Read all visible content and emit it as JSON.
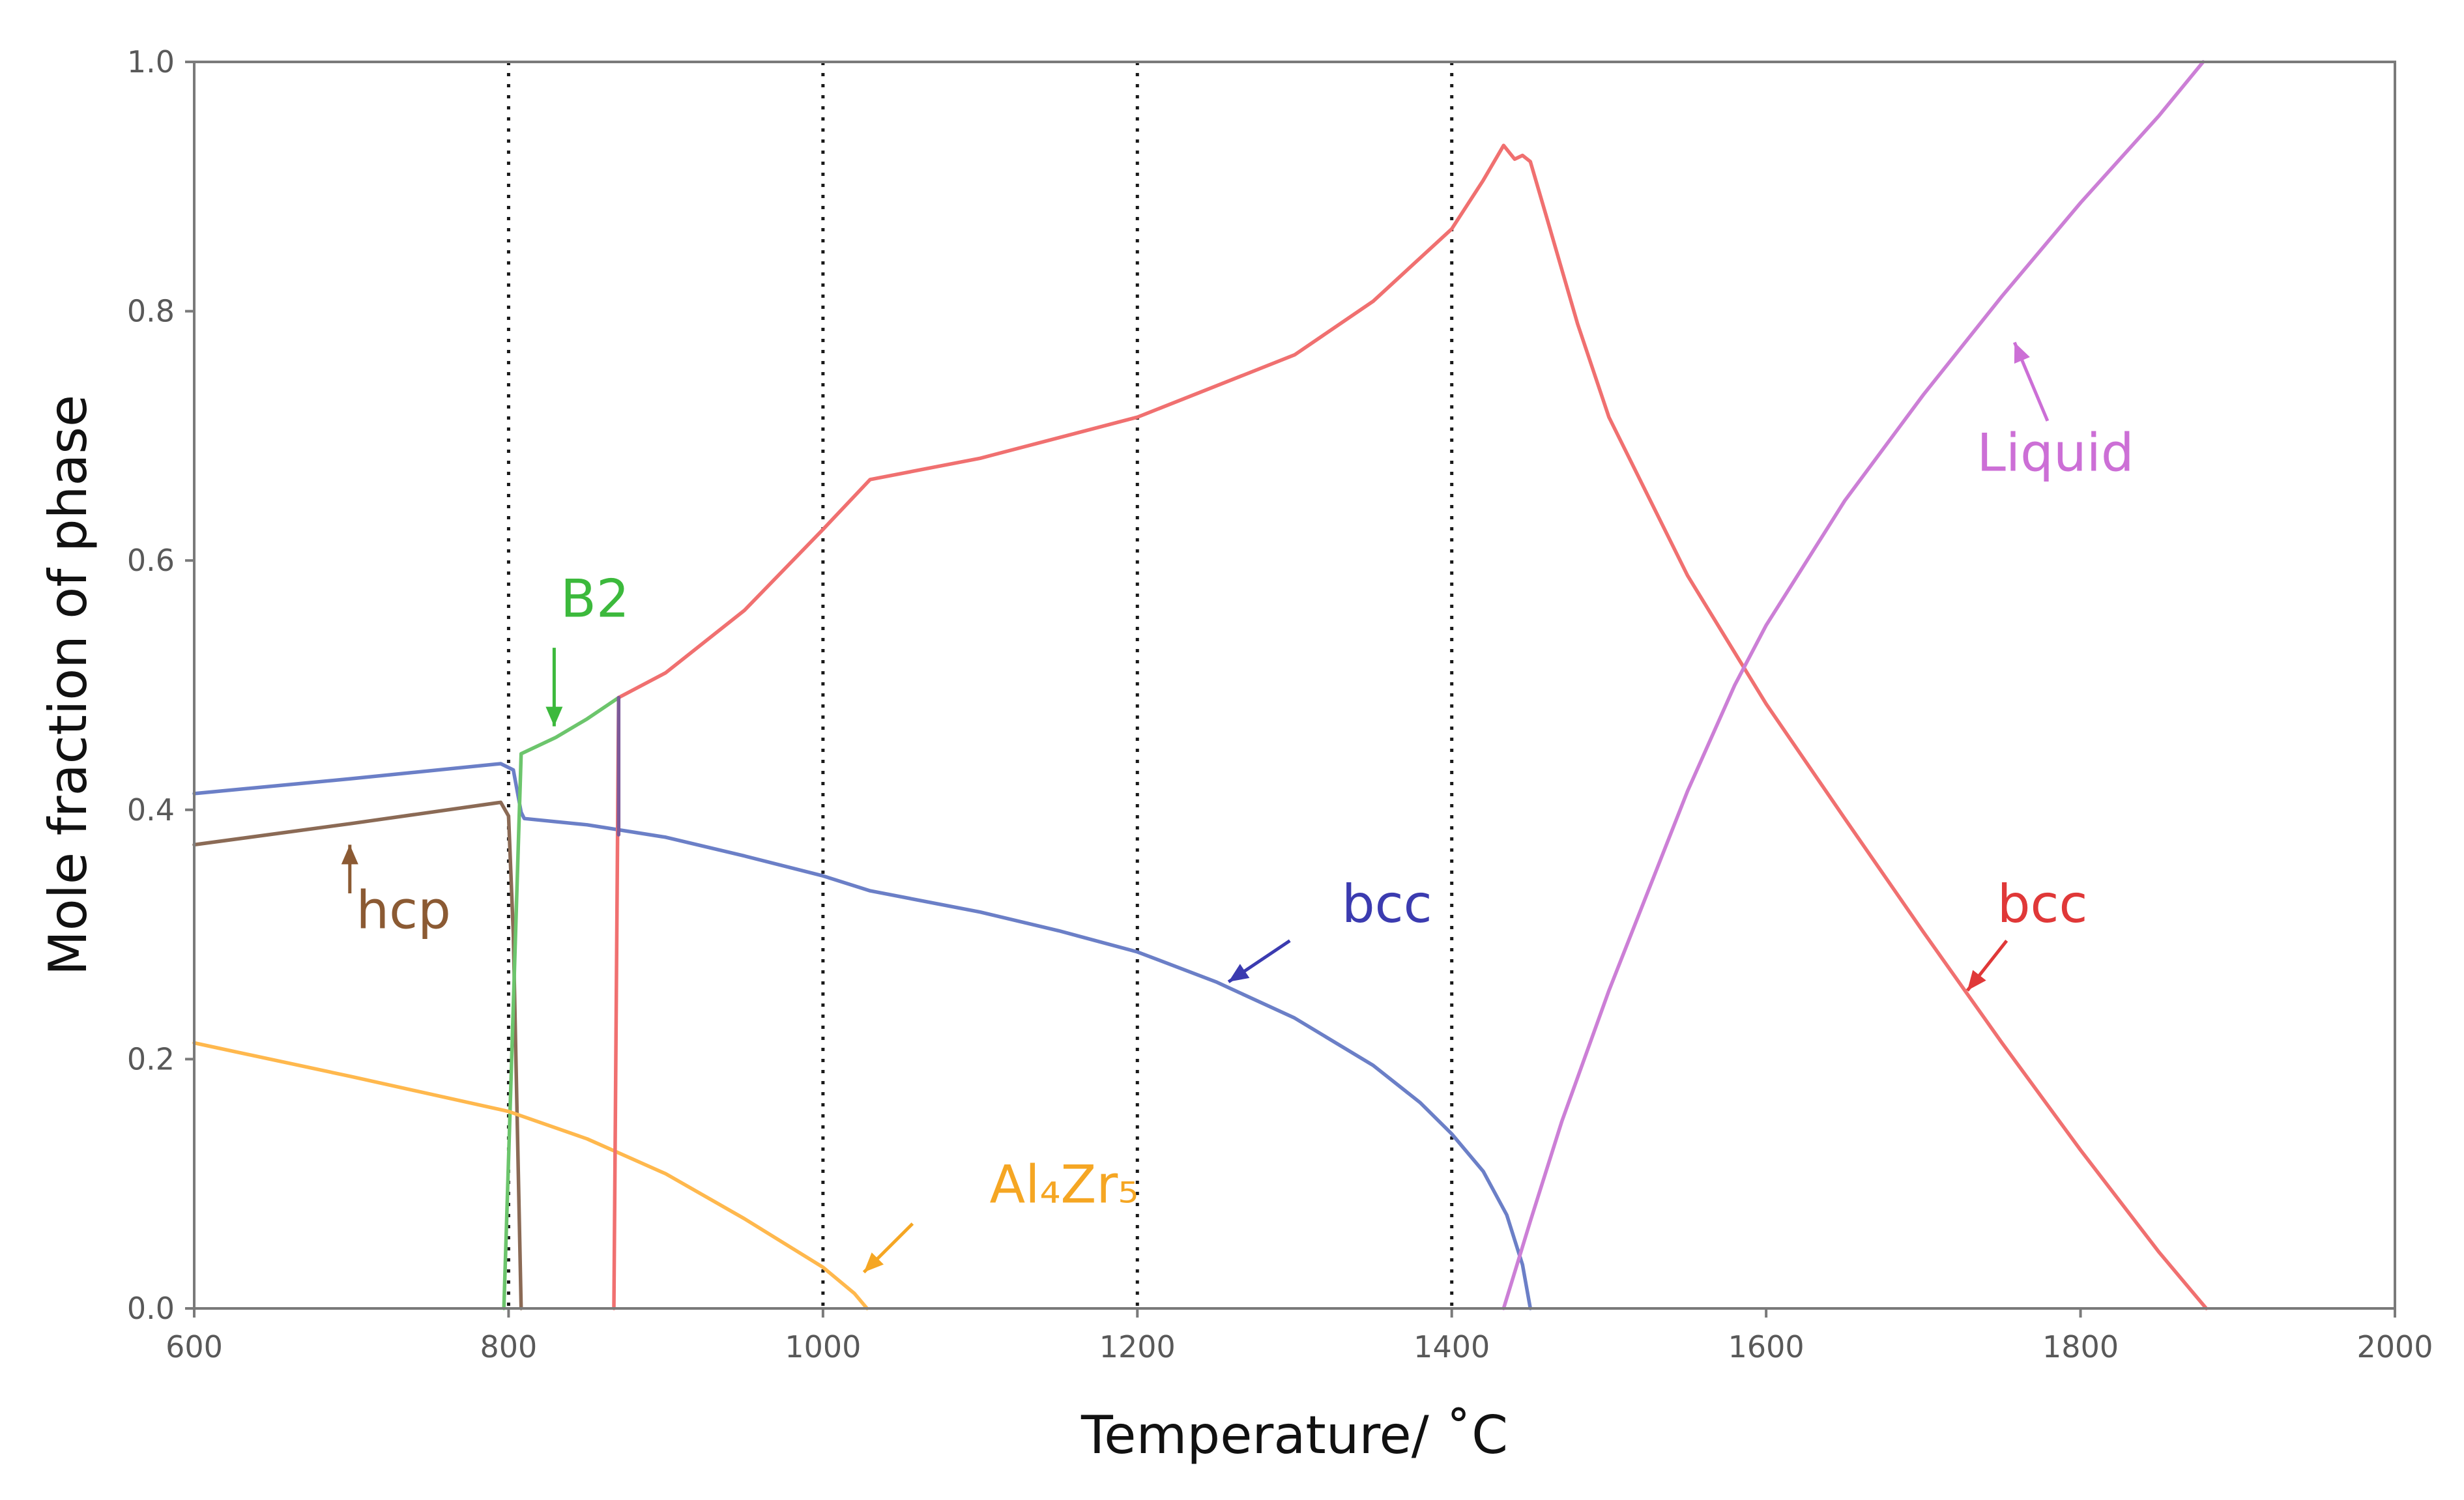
{
  "chart_data": {
    "type": "line",
    "title": "",
    "xlabel": "Temperature/ ˚C",
    "ylabel": "Mole fraction of phase",
    "xlim": [
      600,
      2000
    ],
    "ylim": [
      0.0,
      1.0
    ],
    "x_ticks": [
      600,
      800,
      1000,
      1200,
      1400,
      1600,
      1800,
      2000
    ],
    "x_tick_labels": [
      "600",
      "800",
      "1000",
      "1200",
      "1400",
      "1600",
      "1800",
      "2000"
    ],
    "y_ticks": [
      0.0,
      0.2,
      0.4,
      0.6,
      0.8,
      1.0
    ],
    "y_tick_labels": [
      "0.0",
      "0.2",
      "0.4",
      "0.6",
      "0.8",
      "1.0"
    ],
    "grid": false,
    "reference_lines_x": [
      800,
      1000,
      1200,
      1400
    ],
    "colors": {
      "bcc_blue": "#6b7fc7",
      "bcc_red": "#f07070",
      "hcp": "#8b6a55",
      "b2": "#6cc56c",
      "al4zr5": "#ffb84d",
      "liquid": "#cc7fd6",
      "purple_link": "#7c5a9a"
    },
    "series": [
      {
        "name": "bcc (low-T, blue)",
        "color": "#6b7fc7",
        "x": [
          600,
          700,
          795,
          803,
          808,
          810,
          850,
          900,
          950,
          1000,
          1030,
          1100,
          1150,
          1200,
          1250,
          1300,
          1350,
          1380,
          1400,
          1420,
          1435,
          1445,
          1450
        ],
        "y": [
          0.413,
          0.425,
          0.437,
          0.432,
          0.398,
          0.393,
          0.388,
          0.378,
          0.363,
          0.347,
          0.335,
          0.318,
          0.303,
          0.286,
          0.262,
          0.233,
          0.195,
          0.165,
          0.14,
          0.11,
          0.075,
          0.035,
          0.0
        ]
      },
      {
        "name": "hcp",
        "color": "#8b6a55",
        "x": [
          600,
          700,
          795,
          800,
          803,
          808
        ],
        "y": [
          0.372,
          0.389,
          0.406,
          0.395,
          0.3,
          0.0
        ]
      },
      {
        "name": "B2",
        "color": "#6cc56c",
        "x": [
          797,
          800,
          808,
          830,
          850,
          870
        ],
        "y": [
          0.0,
          0.12,
          0.445,
          0.458,
          0.473,
          0.49
        ]
      },
      {
        "name": "Al4Zr5",
        "color": "#ffb84d",
        "x": [
          600,
          700,
          800,
          850,
          900,
          950,
          1000,
          1020,
          1028
        ],
        "y": [
          0.213,
          0.186,
          0.158,
          0.136,
          0.108,
          0.072,
          0.033,
          0.012,
          0.0
        ]
      },
      {
        "name": "bcc (high-T, red)",
        "color": "#f07070",
        "x": [
          867,
          870,
          900,
          950,
          1000,
          1030,
          1100,
          1200,
          1300,
          1350,
          1400,
          1420,
          1433,
          1440,
          1445,
          1450,
          1460,
          1480,
          1500,
          1550,
          1600,
          1650,
          1700,
          1750,
          1800,
          1850,
          1880
        ],
        "y": [
          0.0,
          0.49,
          0.51,
          0.56,
          0.625,
          0.665,
          0.682,
          0.715,
          0.765,
          0.808,
          0.866,
          0.905,
          0.933,
          0.922,
          0.925,
          0.92,
          0.877,
          0.79,
          0.715,
          0.588,
          0.485,
          0.393,
          0.302,
          0.213,
          0.127,
          0.045,
          0.0
        ]
      },
      {
        "name": "Liquid",
        "color": "#cc7fd6",
        "x": [
          1433,
          1450,
          1470,
          1500,
          1550,
          1580,
          1600,
          1650,
          1700,
          1750,
          1800,
          1850,
          1878
        ],
        "y": [
          0.0,
          0.07,
          0.15,
          0.255,
          0.415,
          0.5,
          0.548,
          0.648,
          0.733,
          0.812,
          0.887,
          0.957,
          1.0
        ]
      },
      {
        "name": "transition",
        "color": "#7c5a9a",
        "x": [
          870,
          870
        ],
        "y": [
          0.38,
          0.49
        ]
      }
    ],
    "annotations": [
      {
        "text": "B2",
        "color": "#3cb93c",
        "label_x": 833,
        "label_y": 0.555,
        "arrow_from": [
          829,
          0.53
        ],
        "arrow_to": [
          829,
          0.467
        ]
      },
      {
        "text": "hcp",
        "color": "#8b5a33",
        "label_x": 703,
        "label_y": 0.305,
        "arrow_from": [
          699,
          0.333
        ],
        "arrow_to": [
          699,
          0.372
        ]
      },
      {
        "text": "bcc",
        "color": "#3b3bb0",
        "label_x": 1330,
        "label_y": 0.31,
        "arrow_from": [
          1297,
          0.295
        ],
        "arrow_to": [
          1258,
          0.262
        ]
      },
      {
        "text": "bcc",
        "color": "#e03838",
        "label_x": 1747,
        "label_y": 0.31,
        "arrow_from": [
          1753,
          0.295
        ],
        "arrow_to": [
          1728,
          0.255
        ]
      },
      {
        "text": "Liquid",
        "color": "#cc6fd6",
        "label_x": 1734,
        "label_y": 0.672,
        "arrow_from": [
          1779,
          0.712
        ],
        "arrow_to": [
          1758,
          0.775
        ]
      },
      {
        "text": "Al₄Zr₅",
        "color": "#f5a623",
        "label_x": 1106,
        "label_y": 0.085,
        "arrow_from": [
          1057,
          0.068
        ],
        "arrow_to": [
          1026,
          0.029
        ]
      }
    ]
  }
}
